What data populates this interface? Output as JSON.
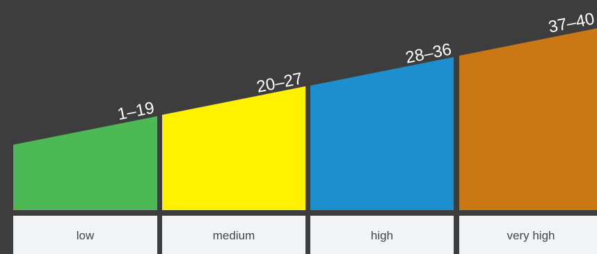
{
  "levels": [
    {
      "range": "1–19",
      "label": "low",
      "color": "#4cb955"
    },
    {
      "range": "20–27",
      "label": "medium",
      "color": "#fff100"
    },
    {
      "range": "28–36",
      "label": "high",
      "color": "#1e8fce"
    },
    {
      "range": "37–40",
      "label": "very high",
      "color": "#c97815"
    }
  ]
}
